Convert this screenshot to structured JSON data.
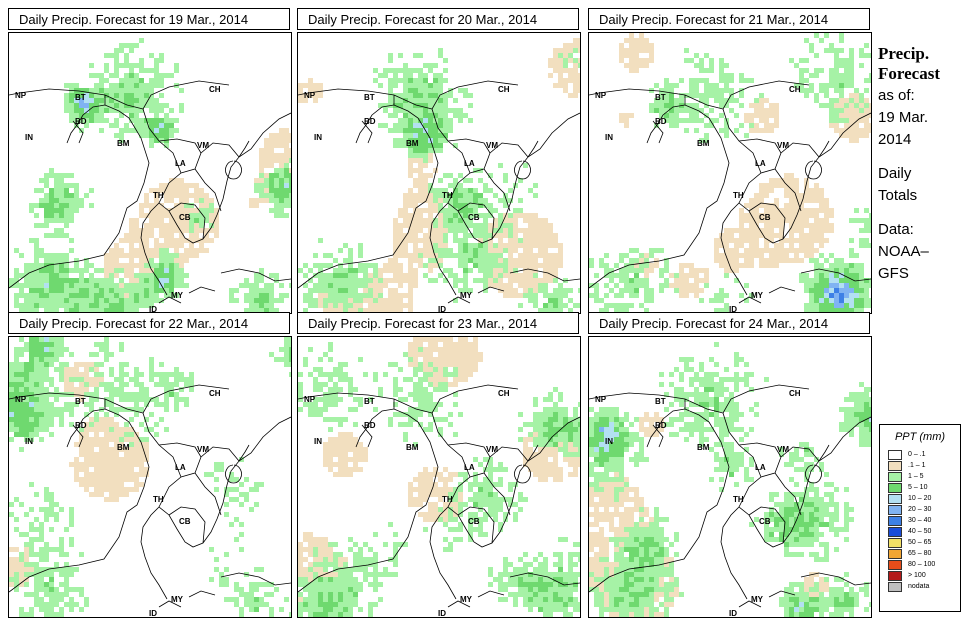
{
  "panels": [
    {
      "title": "Daily Precip. Forecast for  19 Mar., 2014",
      "seed": 19,
      "intensity": 0.9
    },
    {
      "title": "Daily Precip. Forecast for  20 Mar., 2014",
      "seed": 20,
      "intensity": 0.7
    },
    {
      "title": "Daily Precip. Forecast for  21 Mar., 2014",
      "seed": 21,
      "intensity": 0.6
    },
    {
      "title": "Daily Precip. Forecast for  22 Mar., 2014",
      "seed": 22,
      "intensity": 0.6
    },
    {
      "title": "Daily Precip. Forecast for  23 Mar., 2014",
      "seed": 23,
      "intensity": 0.6
    },
    {
      "title": "Daily Precip. Forecast for  24 Mar., 2014",
      "seed": 24,
      "intensity": 0.8
    }
  ],
  "country_labels": {
    "np": "NP",
    "bt": "BT",
    "bd": "BD",
    "in": "IN",
    "bm": "BM",
    "ch": "CH",
    "vm": "VM",
    "la": "LA",
    "th": "TH",
    "cb": "CB",
    "my": "MY",
    "id": "ID"
  },
  "sidebar": {
    "heading_1": "Precip.",
    "heading_2": "Forecast",
    "asof_label": "as of:",
    "asof_date_1": "19 Mar.",
    "asof_date_2": "2014",
    "daily_1": "Daily",
    "daily_2": "Totals",
    "data_label": "Data:",
    "data_src_1": "NOAA–",
    "data_src_2": "GFS"
  },
  "legend": {
    "title": "PPT (mm)",
    "items": [
      {
        "label": "0 – .1",
        "color": "#ffffff"
      },
      {
        "label": ".1 – 1",
        "color": "#f2dfbf"
      },
      {
        "label": "1 – 5",
        "color": "#a6f2a6"
      },
      {
        "label": "5 – 10",
        "color": "#6fd96f"
      },
      {
        "label": "10 – 20",
        "color": "#b3e0f2"
      },
      {
        "label": "20 – 30",
        "color": "#80b3f2"
      },
      {
        "label": "30 – 40",
        "color": "#3d80e6"
      },
      {
        "label": "40 – 50",
        "color": "#1a4dd9"
      },
      {
        "label": "50 – 65",
        "color": "#f2e066"
      },
      {
        "label": "65 – 80",
        "color": "#f2a633"
      },
      {
        "label": "80 – 100",
        "color": "#e64d1a"
      },
      {
        "label": "> 100",
        "color": "#b31a1a"
      },
      {
        "label": "nodata",
        "color": "#bfbfbf"
      }
    ]
  }
}
